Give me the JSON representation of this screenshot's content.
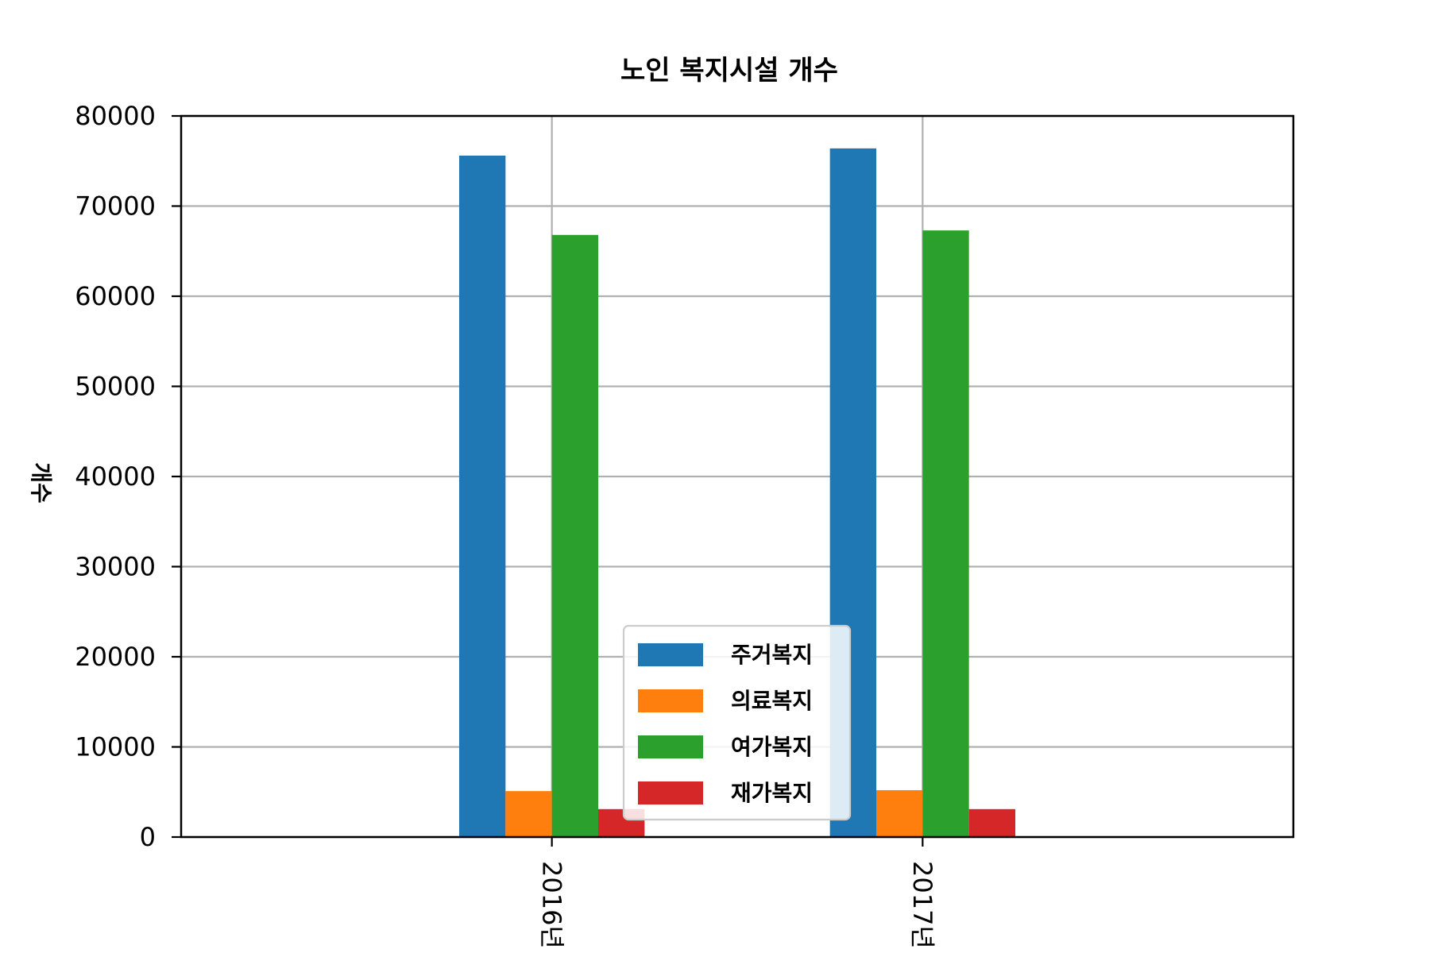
{
  "chart_data": {
    "type": "bar",
    "title": "노인 복지시설 개수",
    "xlabel": "",
    "ylabel": "개수",
    "categories": [
      "2016년",
      "2017년"
    ],
    "series": [
      {
        "name": "주거복지",
        "color": "#1f77b4",
        "values": [
          75600,
          76400
        ]
      },
      {
        "name": "의료복지",
        "color": "#ff7f0e",
        "values": [
          5100,
          5200
        ]
      },
      {
        "name": "여가복지",
        "color": "#2ca02c",
        "values": [
          66800,
          67300
        ]
      },
      {
        "name": "재가복지",
        "color": "#d62728",
        "values": [
          3100,
          3100
        ]
      }
    ],
    "ylim": [
      0,
      80000
    ],
    "yticks": [
      "0",
      "10000",
      "20000",
      "30000",
      "40000",
      "50000",
      "60000",
      "70000",
      "80000"
    ],
    "xtick_rotation": "vertical",
    "grid": true,
    "legend_position": "lower center"
  }
}
